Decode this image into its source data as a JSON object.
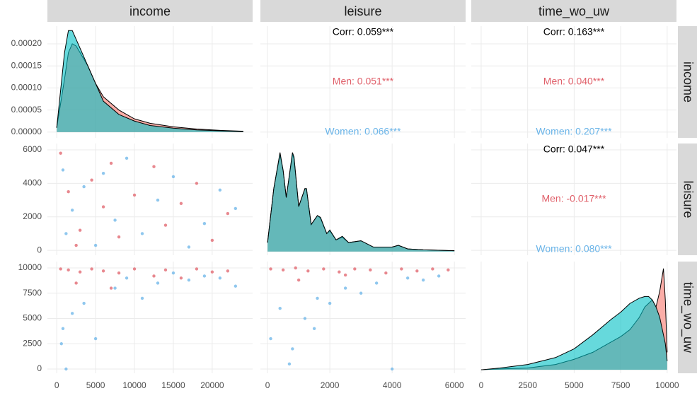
{
  "variables": [
    "income",
    "leisure",
    "time_wo_uw"
  ],
  "chart_data": [
    {
      "type": "density",
      "xlim": [
        -1200,
        25200
      ],
      "xticks": [
        0,
        5000,
        10000,
        15000,
        20000
      ],
      "ylim": [
        -1.3e-05,
        0.00024
      ],
      "yticks": [
        {
          "value": 0,
          "label": "0.00000"
        },
        {
          "value": 5e-05,
          "label": "0.00005"
        },
        {
          "value": 0.0001,
          "label": "0.00010"
        },
        {
          "value": 0.00015,
          "label": "0.00015"
        },
        {
          "value": 0.0002,
          "label": "0.00020"
        }
      ],
      "x": [
        0,
        1000,
        1500,
        2000,
        2500,
        3000,
        4000,
        5000,
        6000,
        8000,
        10000,
        12000,
        15000,
        18000,
        21000,
        24000
      ],
      "series": [
        {
          "name": "Men",
          "color": "#f8766d",
          "values": [
            1e-05,
            0.00012,
            0.00018,
            0.0002,
            0.000195,
            0.00018,
            0.00015,
            0.00011,
            8e-05,
            5e-05,
            3e-05,
            2e-05,
            1.2e-05,
            7e-06,
            4e-06,
            2e-06
          ]
        },
        {
          "name": "Women",
          "color": "#00bfc4",
          "values": [
            1e-05,
            0.00018,
            0.00023,
            0.00023,
            0.00021,
            0.00019,
            0.00015,
            0.00011,
            7e-05,
            4e-05,
            2.5e-05,
            1.5e-05,
            9e-06,
            5e-06,
            3e-06,
            1e-06
          ]
        }
      ]
    },
    {
      "type": "corr",
      "xlim": [
        -230,
        6360
      ],
      "xticks": [
        0,
        2000,
        4000,
        6000
      ],
      "ylim": [
        -1.3e-05,
        0.00024
      ],
      "yticks": [
        0,
        5e-05,
        0.0001,
        0.00015,
        0.0002
      ],
      "texts": [
        "Corr: 0.059***",
        "Men: 0.051***",
        "Women: 0.066***"
      ],
      "colors": [
        "#000000",
        "#e0606a",
        "#6ab4e8"
      ]
    },
    {
      "type": "corr",
      "xlim": [
        -530,
        10500
      ],
      "xticks": [
        0,
        2500,
        5000,
        7500,
        10000
      ],
      "ylim": [
        -1.3e-05,
        0.00024
      ],
      "yticks": [
        0,
        5e-05,
        0.0001,
        0.00015,
        0.0002
      ],
      "texts": [
        "Corr: 0.163***",
        "Men: 0.040***",
        "Women: 0.207***"
      ],
      "colors": [
        "#000000",
        "#e0606a",
        "#6ab4e8"
      ]
    },
    {
      "type": "scatter",
      "xlim": [
        -1200,
        25200
      ],
      "xticks": [
        0,
        5000,
        10000,
        15000,
        20000
      ],
      "ylim": [
        -290,
        6380
      ],
      "yticks": [
        0,
        2000,
        4000,
        6000
      ],
      "series": [
        {
          "name": "Men",
          "color": "#e0606a",
          "x": [
            500,
            1500,
            3000,
            4500,
            6000,
            8000,
            10000,
            12500,
            14000,
            16000,
            18000,
            20000,
            22000,
            2500,
            7000
          ],
          "values": [
            5800,
            3500,
            1200,
            4200,
            2600,
            800,
            3300,
            5000,
            1500,
            2800,
            4000,
            600,
            2200,
            300,
            5200
          ]
        },
        {
          "name": "Women",
          "color": "#6ab4e8",
          "x": [
            800,
            2000,
            3500,
            5000,
            7500,
            9000,
            11000,
            13000,
            15000,
            17000,
            19000,
            21000,
            23000,
            1200,
            6000
          ],
          "values": [
            4800,
            2400,
            3800,
            300,
            1800,
            5500,
            1000,
            3000,
            4400,
            200,
            1600,
            3600,
            2500,
            1000,
            4600
          ]
        }
      ]
    },
    {
      "type": "density",
      "xlim": [
        -230,
        6360
      ],
      "xticks": [
        0,
        2000,
        4000,
        6000
      ],
      "ylim": [
        -4e-05,
        0.0012
      ],
      "x": [
        0,
        200,
        400,
        500,
        600,
        800,
        850,
        1000,
        1200,
        1250,
        1400,
        1600,
        1700,
        1900,
        2000,
        2200,
        2400,
        2600,
        3000,
        3400,
        4000,
        4200,
        4500,
        5000,
        6000
      ],
      "series": [
        {
          "name": "Men",
          "color": "#f8766d",
          "values": [
            0.0001,
            0.0007,
            0.00108,
            0.0009,
            0.0006,
            0.00108,
            0.00103,
            0.0005,
            0.0007,
            0.00069,
            0.0003,
            0.0004,
            0.00037,
            0.0002,
            0.00023,
            0.00013,
            0.00016,
            0.0001,
            0.00012,
            5e-05,
            5e-05,
            7e-05,
            3e-05,
            2e-05,
            1e-05
          ]
        },
        {
          "name": "Women",
          "color": "#00bfc4",
          "values": [
            0.0001,
            0.0007,
            0.0011,
            0.0009,
            0.0006,
            0.0011,
            0.00105,
            0.0005,
            0.0007,
            0.0007,
            0.0003,
            0.0004,
            0.00038,
            0.0002,
            0.00024,
            0.00013,
            0.00017,
            0.0001,
            0.00012,
            5e-05,
            5e-05,
            7e-05,
            3e-05,
            2e-05,
            1e-05
          ]
        }
      ]
    },
    {
      "type": "corr",
      "xlim": [
        -530,
        10500
      ],
      "xticks": [
        0,
        2500,
        5000,
        7500,
        10000
      ],
      "ylim": [
        -290,
        6380
      ],
      "yticks": [
        0,
        2000,
        4000,
        6000
      ],
      "texts": [
        "Corr: 0.047***",
        "Men: -0.017***",
        "Women: 0.080***"
      ],
      "colors": [
        "#000000",
        "#e0606a",
        "#6ab4e8"
      ]
    },
    {
      "type": "scatter",
      "xlim": [
        -1200,
        25200
      ],
      "xticks": [
        0,
        5000,
        10000,
        15000,
        20000
      ],
      "ylim": [
        -420,
        10630
      ],
      "yticks": [
        0,
        2500,
        5000,
        7500,
        10000
      ],
      "series": [
        {
          "name": "Men",
          "color": "#e0606a",
          "x": [
            500,
            1500,
            3000,
            4500,
            6000,
            8000,
            10000,
            12500,
            14000,
            16000,
            18000,
            20000,
            22000,
            2500,
            7000
          ],
          "values": [
            9900,
            9800,
            9600,
            9900,
            9700,
            9500,
            9900,
            9200,
            9800,
            9000,
            9900,
            9600,
            9700,
            8500,
            8000
          ]
        },
        {
          "name": "Women",
          "color": "#6ab4e8",
          "x": [
            800,
            2000,
            3500,
            5000,
            7500,
            9000,
            11000,
            13000,
            15000,
            17000,
            19000,
            21000,
            23000,
            1200,
            600
          ],
          "values": [
            4000,
            5500,
            6500,
            3000,
            8000,
            9000,
            7000,
            8500,
            9500,
            8800,
            9200,
            9000,
            8200,
            0,
            2500
          ]
        }
      ]
    },
    {
      "type": "scatter",
      "xlim": [
        -230,
        6360
      ],
      "xticks": [
        0,
        2000,
        4000,
        6000
      ],
      "ylim": [
        -420,
        10630
      ],
      "yticks": [
        0,
        2500,
        5000,
        7500,
        10000
      ],
      "series": [
        {
          "name": "Men",
          "color": "#e0606a",
          "x": [
            100,
            500,
            900,
            1300,
            1800,
            2300,
            2800,
            3300,
            3800,
            4300,
            4800,
            5300,
            5800,
            1000,
            2500
          ],
          "values": [
            9900,
            9800,
            10000,
            9700,
            9900,
            9600,
            9900,
            9800,
            9500,
            9900,
            9700,
            9900,
            9800,
            8800,
            9300
          ]
        },
        {
          "name": "Women",
          "color": "#6ab4e8",
          "x": [
            100,
            400,
            800,
            1200,
            1600,
            2000,
            2500,
            3000,
            3500,
            4000,
            4500,
            5000,
            5500,
            700,
            1500
          ],
          "values": [
            3000,
            6000,
            2000,
            5000,
            7000,
            6500,
            8000,
            7500,
            8500,
            0,
            9000,
            8800,
            9200,
            500,
            4000
          ]
        }
      ]
    },
    {
      "type": "density",
      "xlim": [
        -530,
        10500
      ],
      "xticks": [
        0,
        2500,
        5000,
        7500,
        10000
      ],
      "ylim": [
        -2e-05,
        0.00062
      ],
      "x": [
        0,
        1000,
        2500,
        4000,
        5000,
        6000,
        7000,
        7500,
        8000,
        8500,
        8800,
        9000,
        9200,
        9400,
        9600,
        9800,
        9900,
        10000
      ],
      "series": [
        {
          "name": "Men",
          "color": "#f8766d",
          "values": [
            0,
            5e-06,
            1e-05,
            3e-05,
            6e-05,
            0.0001,
            0.00016,
            0.00019,
            0.00023,
            0.0003,
            0.00036,
            0.00038,
            0.0004,
            0.00036,
            0.00045,
            0.00058,
            0.0004,
            0.0001
          ]
        },
        {
          "name": "Women",
          "color": "#00bfc4",
          "values": [
            0,
            1e-05,
            3e-05,
            7e-05,
            0.00012,
            0.0002,
            0.00029,
            0.00033,
            0.00038,
            0.00041,
            0.00042,
            0.00042,
            0.0004,
            0.00036,
            0.0003,
            0.0002,
            0.00015,
            5e-05
          ]
        }
      ]
    }
  ]
}
